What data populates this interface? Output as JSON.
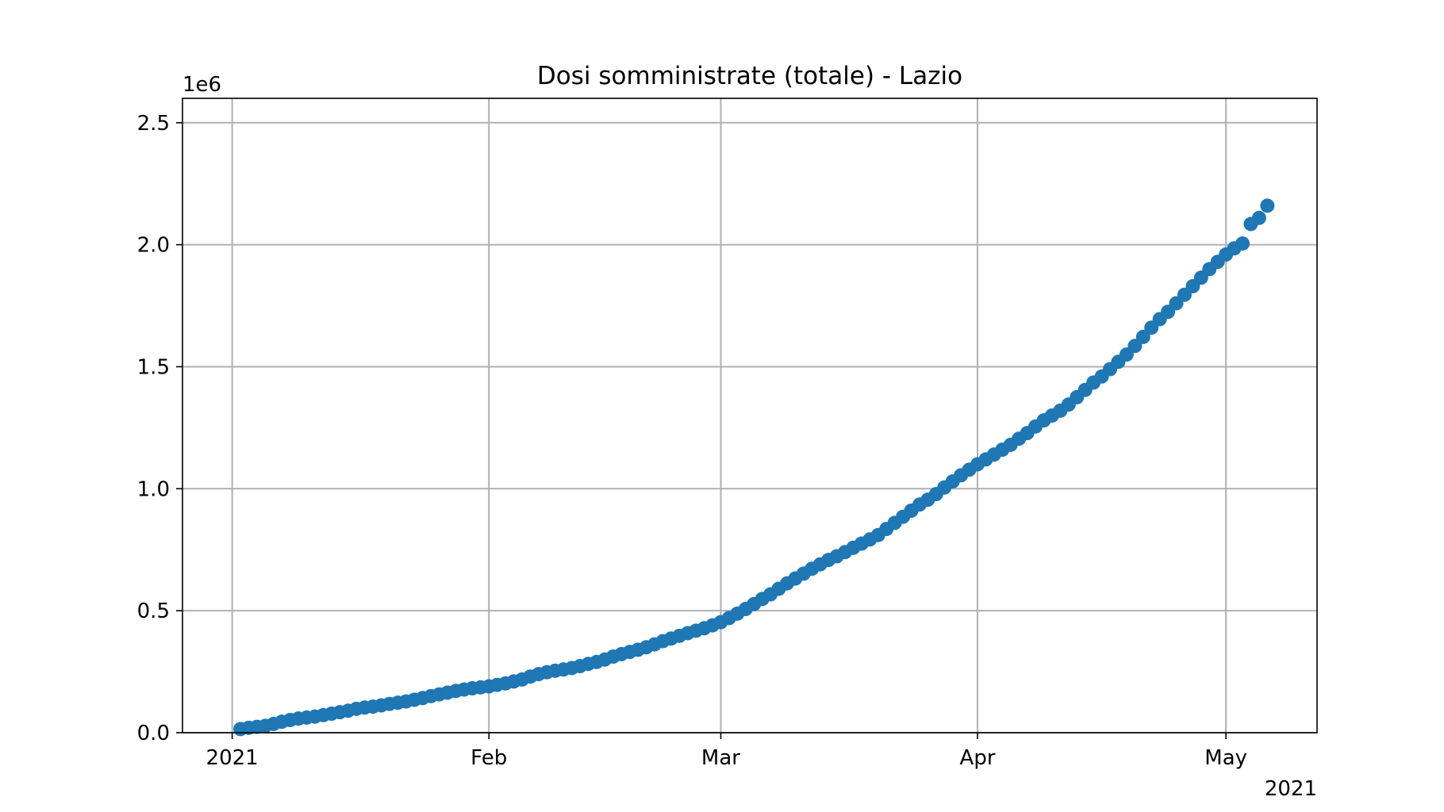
{
  "chart_data": {
    "type": "scatter",
    "title": "Dosi somministrate (totale) - Lazio",
    "xlabel": "",
    "ylabel": "",
    "y_offset_label": "1e6",
    "x_offset_label": "2021",
    "grid": true,
    "marker_color": "#1f77b4",
    "x_ticks": [
      {
        "date": "2021-01-01",
        "label": "2021"
      },
      {
        "date": "2021-02-01",
        "label": "Feb"
      },
      {
        "date": "2021-03-01",
        "label": "Mar"
      },
      {
        "date": "2021-04-01",
        "label": "Apr"
      },
      {
        "date": "2021-05-01",
        "label": "May"
      }
    ],
    "xlim": [
      "2020-12-26",
      "2021-05-12"
    ],
    "y_ticks": [
      {
        "value": 0,
        "label": "0.0"
      },
      {
        "value": 500000,
        "label": "0.5"
      },
      {
        "value": 1000000,
        "label": "1.0"
      },
      {
        "value": 1500000,
        "label": "1.5"
      },
      {
        "value": 2000000,
        "label": "2.0"
      },
      {
        "value": 2500000,
        "label": "2.5"
      }
    ],
    "ylim": [
      0,
      2600000
    ],
    "series": [
      {
        "x": [
          "2021-01-02",
          "2021-01-03",
          "2021-01-04",
          "2021-01-05",
          "2021-01-06",
          "2021-01-07",
          "2021-01-08",
          "2021-01-09",
          "2021-01-10",
          "2021-01-11",
          "2021-01-12",
          "2021-01-13",
          "2021-01-14",
          "2021-01-15",
          "2021-01-16",
          "2021-01-17",
          "2021-01-18",
          "2021-01-19",
          "2021-01-20",
          "2021-01-21",
          "2021-01-22",
          "2021-01-23",
          "2021-01-24",
          "2021-01-25",
          "2021-01-26",
          "2021-01-27",
          "2021-01-28",
          "2021-01-29",
          "2021-01-30",
          "2021-01-31",
          "2021-02-01",
          "2021-02-02",
          "2021-02-03",
          "2021-02-04",
          "2021-02-05",
          "2021-02-06",
          "2021-02-07",
          "2021-02-08",
          "2021-02-09",
          "2021-02-10",
          "2021-02-11",
          "2021-02-12",
          "2021-02-13",
          "2021-02-14",
          "2021-02-15",
          "2021-02-16",
          "2021-02-17",
          "2021-02-18",
          "2021-02-19",
          "2021-02-20",
          "2021-02-21",
          "2021-02-22",
          "2021-02-23",
          "2021-02-24",
          "2021-02-25",
          "2021-02-26",
          "2021-02-27",
          "2021-02-28",
          "2021-03-01",
          "2021-03-02",
          "2021-03-03",
          "2021-03-04",
          "2021-03-05",
          "2021-03-06",
          "2021-03-07",
          "2021-03-08",
          "2021-03-09",
          "2021-03-10",
          "2021-03-11",
          "2021-03-12",
          "2021-03-13",
          "2021-03-14",
          "2021-03-15",
          "2021-03-16",
          "2021-03-17",
          "2021-03-18",
          "2021-03-19",
          "2021-03-20",
          "2021-03-21",
          "2021-03-22",
          "2021-03-23",
          "2021-03-24",
          "2021-03-25",
          "2021-03-26",
          "2021-03-27",
          "2021-03-28",
          "2021-03-29",
          "2021-03-30",
          "2021-03-31",
          "2021-04-01",
          "2021-04-02",
          "2021-04-03",
          "2021-04-04",
          "2021-04-05",
          "2021-04-06",
          "2021-04-07",
          "2021-04-08",
          "2021-04-09",
          "2021-04-10",
          "2021-04-11",
          "2021-04-12",
          "2021-04-13",
          "2021-04-14",
          "2021-04-15",
          "2021-04-16",
          "2021-04-17",
          "2021-04-18",
          "2021-04-19",
          "2021-04-20",
          "2021-04-21",
          "2021-04-22",
          "2021-04-23",
          "2021-04-24",
          "2021-04-25",
          "2021-04-26",
          "2021-04-27",
          "2021-04-28",
          "2021-04-29",
          "2021-04-30",
          "2021-05-01",
          "2021-05-02",
          "2021-05-03",
          "2021-05-04",
          "2021-05-05",
          "2021-05-06"
        ],
        "y": [
          15000,
          20000,
          24000,
          28000,
          36000,
          45000,
          52000,
          58000,
          62000,
          66000,
          72000,
          78000,
          84000,
          90000,
          98000,
          103000,
          107000,
          112000,
          118000,
          123000,
          128000,
          135000,
          142000,
          150000,
          157000,
          164000,
          171000,
          177000,
          182000,
          186000,
          190000,
          196000,
          202000,
          210000,
          218000,
          230000,
          240000,
          248000,
          254000,
          259000,
          265000,
          273000,
          282000,
          290000,
          300000,
          312000,
          322000,
          331000,
          340000,
          350000,
          362000,
          375000,
          386000,
          397000,
          408000,
          418000,
          428000,
          440000,
          453000,
          470000,
          488000,
          507000,
          527000,
          548000,
          567000,
          590000,
          612000,
          632000,
          652000,
          672000,
          690000,
          708000,
          723000,
          740000,
          758000,
          775000,
          792000,
          810000,
          835000,
          860000,
          885000,
          910000,
          935000,
          955000,
          978000,
          1005000,
          1030000,
          1055000,
          1078000,
          1100000,
          1120000,
          1140000,
          1160000,
          1180000,
          1205000,
          1228000,
          1255000,
          1280000,
          1300000,
          1320000,
          1345000,
          1375000,
          1405000,
          1435000,
          1460000,
          1490000,
          1520000,
          1550000,
          1585000,
          1622000,
          1660000,
          1695000,
          1725000,
          1760000,
          1795000,
          1830000,
          1865000,
          1900000,
          1930000,
          1960000,
          1985000,
          2005000,
          2085000,
          2110000,
          2160000
        ]
      }
    ]
  }
}
